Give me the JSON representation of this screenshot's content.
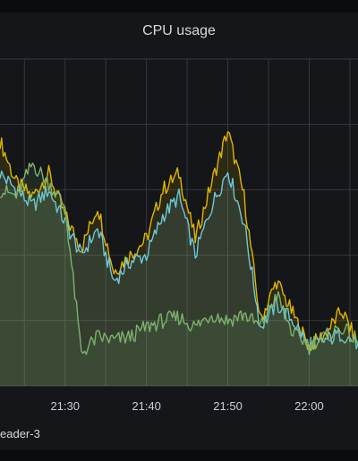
{
  "panel": {
    "title": "CPU usage"
  },
  "legend": {
    "visible_label": "eader-3"
  },
  "colors": {
    "background": "#141619",
    "grid": "#35383d",
    "yellow": "#e0b400",
    "blue": "#6ec8dc",
    "green": "#7eb26d"
  },
  "chart_data": {
    "type": "area",
    "title": "CPU usage",
    "xlabel": "",
    "ylabel": "",
    "x_ticks": [
      "21:30",
      "21:40",
      "21:50",
      "22:00"
    ],
    "grid": true,
    "x": [
      "21:22",
      "21:24",
      "21:26",
      "21:28",
      "21:30",
      "21:32",
      "21:34",
      "21:36",
      "21:38",
      "21:40",
      "21:42",
      "21:44",
      "21:46",
      "21:48",
      "21:50",
      "21:52",
      "21:54",
      "21:56",
      "21:58",
      "22:00",
      "22:02",
      "22:04",
      "22:06"
    ],
    "series": [
      {
        "color": "#e0b400",
        "values": [
          75,
          62,
          58,
          65,
          52,
          42,
          55,
          35,
          40,
          45,
          60,
          65,
          45,
          62,
          78,
          58,
          20,
          32,
          22,
          12,
          16,
          23,
          13
        ]
      },
      {
        "color": "#6ec8dc",
        "values": [
          65,
          60,
          55,
          60,
          50,
          40,
          48,
          32,
          38,
          40,
          52,
          58,
          40,
          55,
          66,
          50,
          18,
          25,
          20,
          12,
          14,
          16,
          13
        ]
      },
      {
        "color": "#7eb26d",
        "values": [
          60,
          58,
          68,
          62,
          55,
          10,
          15,
          14,
          15,
          18,
          20,
          21,
          18,
          22,
          20,
          22,
          18,
          28,
          16,
          13,
          15,
          18,
          13
        ]
      }
    ],
    "ylim": [
      0,
      100
    ]
  }
}
